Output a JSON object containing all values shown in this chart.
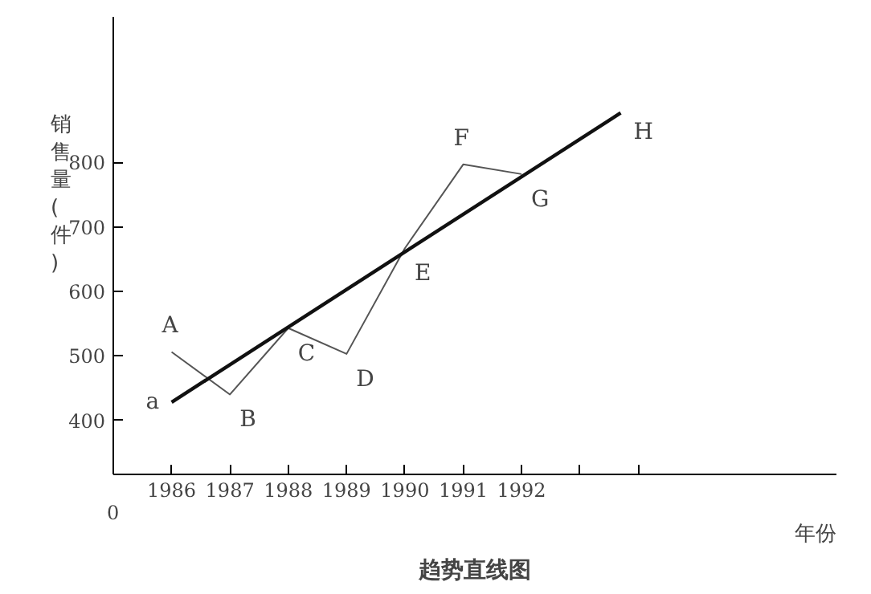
{
  "chart_data": {
    "type": "line",
    "title": "趋势直线图",
    "xlabel": "年份",
    "ylabel": "销售量(件)",
    "x": [
      1986,
      1987,
      1988,
      1989,
      1990,
      1991,
      1992
    ],
    "series": [
      {
        "color": "#555555",
        "values": [
          506,
          440,
          543,
          503,
          667,
          797,
          782
        ],
        "line_style": "solid"
      },
      {
        "type": "line",
        "color": "#111111",
        "x": [
          1986,
          1993.7
        ],
        "values": [
          428,
          877
        ]
      }
    ],
    "annotations": [
      {
        "text": "A",
        "x": 1986,
        "y": 506
      },
      {
        "text": "B",
        "x": 1987,
        "y": 440
      },
      {
        "text": "C",
        "x": 1988,
        "y": 543
      },
      {
        "text": "D",
        "x": 1989,
        "y": 503
      },
      {
        "text": "E",
        "x": 1990,
        "y": 667
      },
      {
        "text": "F",
        "x": 1991,
        "y": 797
      },
      {
        "text": "G",
        "x": 1992,
        "y": 782
      },
      {
        "text": "a",
        "x": 1986,
        "y": 428
      },
      {
        "text": "H",
        "x": 1993.7,
        "y": 877
      },
      "0"
    ],
    "xlim": [
      1985,
      1997.4
    ],
    "ylim": [
      316,
      1026
    ],
    "xticks": [
      1986,
      1987,
      1988,
      1989,
      1990,
      1991,
      1992,
      {
        "value": 1993,
        "label": null
      },
      {
        "value": 1994,
        "label": null
      }
    ],
    "yticks": [
      400,
      500,
      600,
      700,
      800
    ],
    "grid": false
  }
}
